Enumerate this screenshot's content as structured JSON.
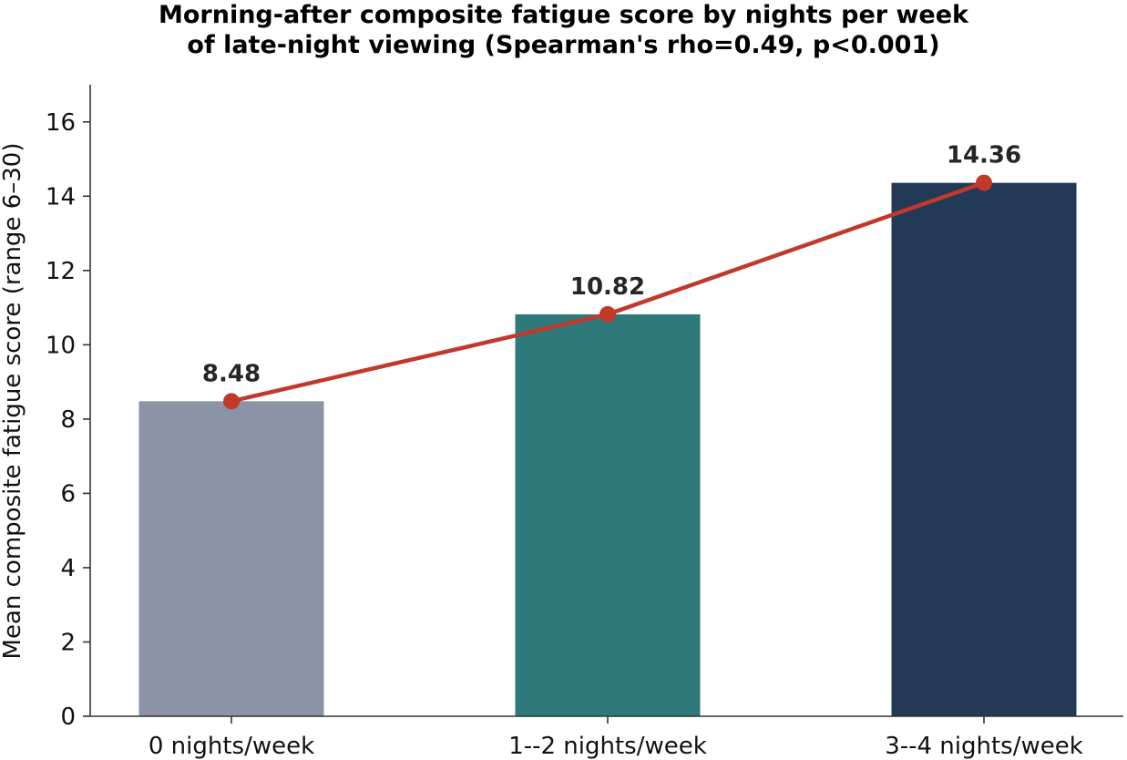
{
  "chart_data": {
    "type": "bar",
    "title_line1": "Morning-after composite fatigue score by nights per week",
    "title_line2": "of late-night viewing (Spearman's rho=0.49, p<0.001)",
    "xlabel": "",
    "ylabel": "Mean composite fatigue score (range 6–30)",
    "categories": [
      "0 nights/week",
      "1--2 nights/week",
      "3--4 nights/week"
    ],
    "values": [
      8.48,
      10.82,
      14.36
    ],
    "data_labels": [
      "8.48",
      "10.82",
      "14.36"
    ],
    "bar_colors": [
      "#8a94a6",
      "#2e7a7b",
      "#223a57"
    ],
    "trend_line": {
      "color": "#c0392b",
      "values": [
        8.48,
        10.82,
        14.36
      ]
    },
    "ylim": [
      0,
      17
    ],
    "yticks": [
      0,
      2,
      4,
      6,
      8,
      10,
      12,
      14,
      16
    ],
    "grid": false,
    "legend": "none"
  }
}
